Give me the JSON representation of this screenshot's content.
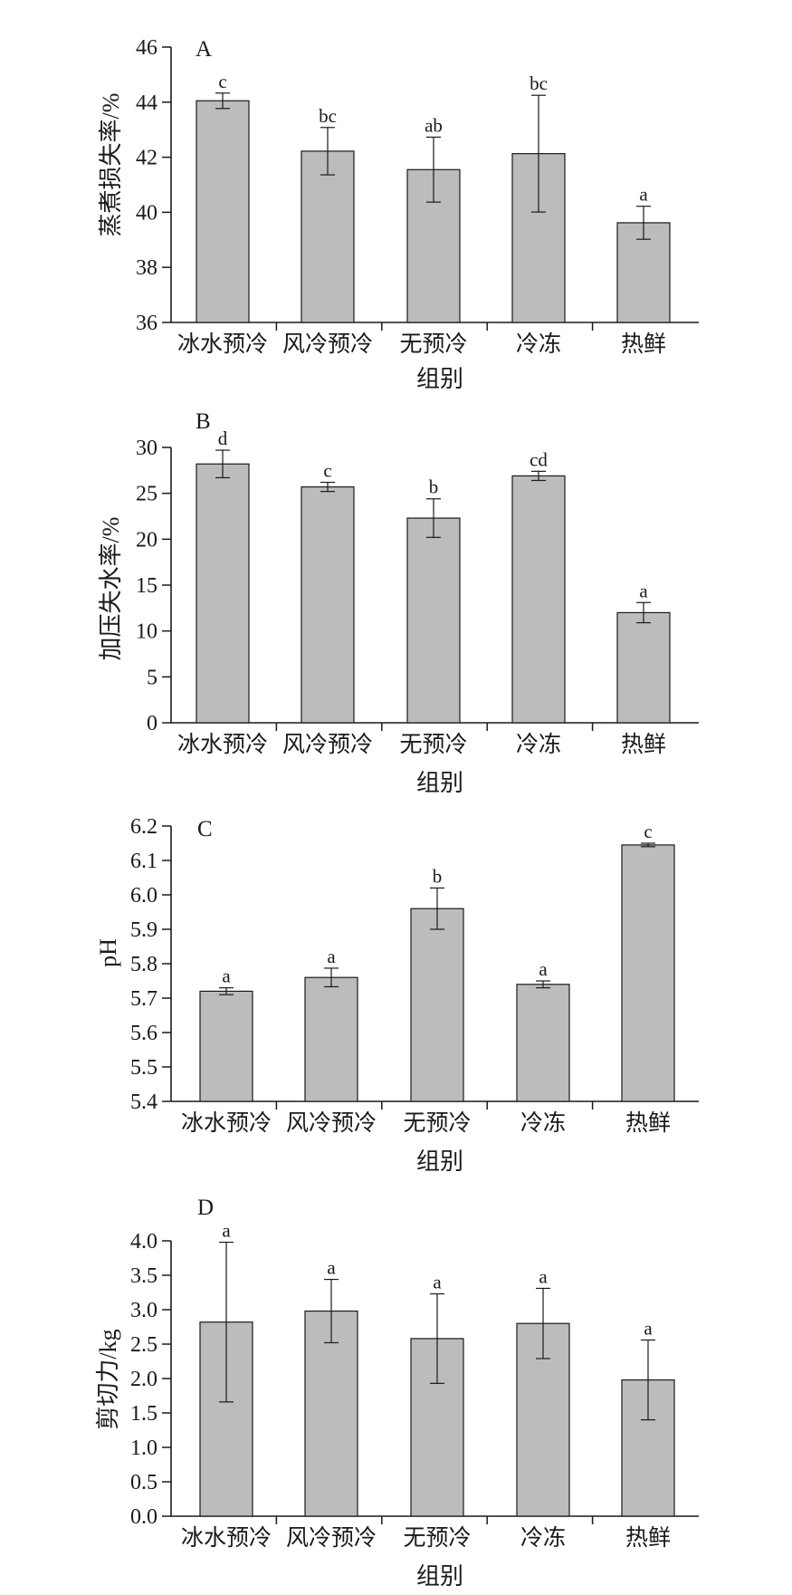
{
  "chart_data": [
    {
      "type": "bar",
      "panel": "A",
      "categories": [
        "冰水预冷",
        "风冷预冷",
        "无预冷",
        "冷冻",
        "热鲜"
      ],
      "values": [
        44.05,
        42.22,
        41.55,
        42.13,
        39.62
      ],
      "errors": [
        0.28,
        0.86,
        1.18,
        2.12,
        0.6
      ],
      "labels": [
        "c",
        "bc",
        "ab",
        "bc",
        "a"
      ],
      "xlabel": "组别",
      "ylabel": "蒸煮损失率/%",
      "ylim": [
        36,
        46
      ],
      "yticks": [
        "36",
        "38",
        "40",
        "42",
        "44",
        "46"
      ],
      "ytick_values": [
        36,
        38,
        40,
        42,
        44,
        46
      ],
      "grid": false
    },
    {
      "type": "bar",
      "panel": "B",
      "categories": [
        "冰水预冷",
        "风冷预冷",
        "无预冷",
        "冷冻",
        "热鲜"
      ],
      "values": [
        28.2,
        25.7,
        22.3,
        26.9,
        12.0
      ],
      "errors": [
        1.5,
        0.5,
        2.1,
        0.5,
        1.1
      ],
      "labels": [
        "d",
        "c",
        "b",
        "cd",
        "a"
      ],
      "xlabel": "组别",
      "ylabel": "加压失水率/%",
      "ylim": [
        0,
        30
      ],
      "yticks": [
        "0",
        "5",
        "10",
        "15",
        "20",
        "25",
        "30"
      ],
      "ytick_values": [
        0,
        5,
        10,
        15,
        20,
        25,
        30
      ],
      "grid": false
    },
    {
      "type": "bar",
      "panel": "C",
      "categories": [
        "冰水预冷",
        "风冷预冷",
        "无预冷",
        "冷冻",
        "热鲜"
      ],
      "values": [
        5.72,
        5.76,
        5.96,
        5.74,
        6.145
      ],
      "errors": [
        0.01,
        0.027,
        0.06,
        0.01,
        0.005
      ],
      "labels": [
        "a",
        "a",
        "b",
        "a",
        "c"
      ],
      "xlabel": "组别",
      "ylabel": "pH",
      "ylim": [
        5.4,
        6.2
      ],
      "yticks": [
        "5.4",
        "5.5",
        "5.6",
        "5.7",
        "5.8",
        "5.9",
        "6.0",
        "6.1",
        "6.2"
      ],
      "ytick_values": [
        5.4,
        5.5,
        5.6,
        5.7,
        5.8,
        5.9,
        6.0,
        6.1,
        6.2
      ],
      "grid": false
    },
    {
      "type": "bar",
      "panel": "D",
      "categories": [
        "冰水预冷",
        "风冷预冷",
        "无预冷",
        "冷冻",
        "热鲜"
      ],
      "values": [
        2.82,
        2.98,
        2.58,
        2.8,
        1.98
      ],
      "errors": [
        1.16,
        0.46,
        0.65,
        0.51,
        0.58
      ],
      "labels": [
        "a",
        "a",
        "a",
        "a",
        "a"
      ],
      "xlabel": "组别",
      "ylabel": "剪切力/kg",
      "ylim": [
        0.0,
        4.0
      ],
      "yticks": [
        "0.0",
        "0.5",
        "1.0",
        "1.5",
        "2.0",
        "2.5",
        "3.0",
        "3.5",
        "4.0"
      ],
      "ytick_values": [
        0.0,
        0.5,
        1.0,
        1.5,
        2.0,
        2.5,
        3.0,
        3.5,
        4.0
      ],
      "grid": false
    }
  ]
}
